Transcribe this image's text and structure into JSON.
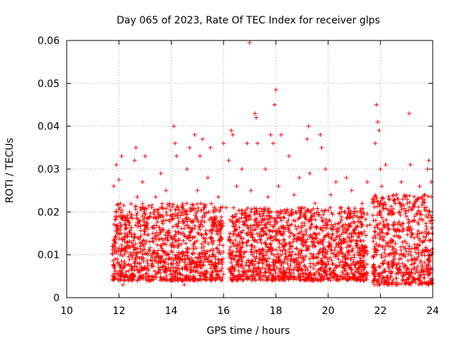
{
  "chart_data": {
    "type": "scatter",
    "title": "Day 065 of 2023, Rate Of TEC Index for receiver glps",
    "xlabel": "GPS time / hours",
    "ylabel": "ROTI / TECUs",
    "xlim": [
      10,
      24
    ],
    "ylim": [
      0,
      0.06
    ],
    "x_ticks": [
      10,
      12,
      14,
      16,
      18,
      20,
      22,
      24
    ],
    "x_tick_labels": [
      "10",
      "12",
      "14",
      "16",
      "18",
      "20",
      "22",
      "24"
    ],
    "y_ticks": [
      0,
      0.01,
      0.02,
      0.03,
      0.04,
      0.05,
      0.06
    ],
    "y_tick_labels": [
      "0",
      "0.01",
      "0.02",
      "0.03",
      "0.04",
      "0.05",
      "0.06"
    ],
    "grid": true,
    "marker": "+",
    "color": "#ff0000",
    "series": [
      {
        "name": "ROTI",
        "points": [
          [
            11.75,
            0.012
          ],
          [
            11.8,
            0.026
          ],
          [
            11.85,
            0.009
          ],
          [
            11.9,
            0.031
          ],
          [
            11.95,
            0.015
          ],
          [
            12.0,
            0.0275
          ],
          [
            12.05,
            0.022
          ],
          [
            12.1,
            0.033
          ],
          [
            12.15,
            0.003
          ],
          [
            12.2,
            0.018
          ],
          [
            12.3,
            0.012
          ],
          [
            12.4,
            0.02
          ],
          [
            12.5,
            0.01
          ],
          [
            12.6,
            0.032
          ],
          [
            12.65,
            0.035
          ],
          [
            12.7,
            0.0235
          ],
          [
            12.8,
            0.014
          ],
          [
            12.9,
            0.027
          ],
          [
            13.0,
            0.033
          ],
          [
            13.1,
            0.008
          ],
          [
            13.2,
            0.019
          ],
          [
            13.3,
            0.015
          ],
          [
            13.4,
            0.0235
          ],
          [
            13.5,
            0.011
          ],
          [
            13.6,
            0.029
          ],
          [
            13.7,
            0.018
          ],
          [
            13.8,
            0.025
          ],
          [
            13.9,
            0.009
          ],
          [
            14.0,
            0.019
          ],
          [
            14.1,
            0.04
          ],
          [
            14.15,
            0.036
          ],
          [
            14.2,
            0.033
          ],
          [
            14.3,
            0.0125
          ],
          [
            14.4,
            0.02
          ],
          [
            14.5,
            0.003
          ],
          [
            14.6,
            0.03
          ],
          [
            14.7,
            0.035
          ],
          [
            14.8,
            0.016
          ],
          [
            14.9,
            0.038
          ],
          [
            15.0,
            0.025
          ],
          [
            15.1,
            0.033
          ],
          [
            15.2,
            0.037
          ],
          [
            15.3,
            0.013
          ],
          [
            15.4,
            0.028
          ],
          [
            15.5,
            0.035
          ],
          [
            15.6,
            0.018
          ],
          [
            15.7,
            0.009
          ],
          [
            15.8,
            0.0235
          ],
          [
            15.9,
            0.014
          ],
          [
            16.0,
            0.036
          ],
          [
            16.1,
            0.021
          ],
          [
            16.2,
            0.032
          ],
          [
            16.3,
            0.039
          ],
          [
            16.35,
            0.038
          ],
          [
            16.4,
            0.015
          ],
          [
            16.5,
            0.026
          ],
          [
            16.6,
            0.011
          ],
          [
            16.7,
            0.03
          ],
          [
            16.8,
            0.02
          ],
          [
            16.9,
            0.036
          ],
          [
            17.0,
            0.0595
          ],
          [
            17.05,
            0.025
          ],
          [
            17.1,
            0.014
          ],
          [
            17.2,
            0.043
          ],
          [
            17.25,
            0.042
          ],
          [
            17.3,
            0.036
          ],
          [
            17.4,
            0.019
          ],
          [
            17.5,
            0.009
          ],
          [
            17.6,
            0.03
          ],
          [
            17.7,
            0.0235
          ],
          [
            17.8,
            0.038
          ],
          [
            17.9,
            0.036
          ],
          [
            17.95,
            0.045
          ],
          [
            18.0,
            0.0485
          ],
          [
            18.05,
            0.015
          ],
          [
            18.1,
            0.026
          ],
          [
            18.2,
            0.038
          ],
          [
            18.3,
            0.012
          ],
          [
            18.4,
            0.02
          ],
          [
            18.5,
            0.033
          ],
          [
            18.6,
            0.009
          ],
          [
            18.7,
            0.024
          ],
          [
            18.8,
            0.016
          ],
          [
            18.9,
            0.028
          ],
          [
            19.0,
            0.011
          ],
          [
            19.1,
            0.019
          ],
          [
            19.2,
            0.037
          ],
          [
            19.25,
            0.04
          ],
          [
            19.3,
            0.029
          ],
          [
            19.4,
            0.014
          ],
          [
            19.5,
            0.022
          ],
          [
            19.6,
            0.008
          ],
          [
            19.7,
            0.038
          ],
          [
            19.75,
            0.035
          ],
          [
            19.8,
            0.018
          ],
          [
            19.9,
            0.03
          ],
          [
            20.0,
            0.012
          ],
          [
            20.1,
            0.024
          ],
          [
            20.2,
            0.016
          ],
          [
            20.3,
            0.027
          ],
          [
            20.4,
            0.009
          ],
          [
            20.5,
            0.021
          ],
          [
            20.6,
            0.013
          ],
          [
            20.7,
            0.028
          ],
          [
            20.8,
            0.01
          ],
          [
            20.9,
            0.025
          ],
          [
            21.0,
            0.015
          ],
          [
            21.1,
            0.02
          ],
          [
            21.2,
            0.008
          ],
          [
            21.3,
            0.022
          ],
          [
            21.4,
            0.012
          ],
          [
            21.5,
            0.027
          ],
          [
            21.6,
            0.017
          ],
          [
            21.7,
            0.023
          ],
          [
            21.8,
            0.036
          ],
          [
            21.85,
            0.045
          ],
          [
            21.9,
            0.041
          ],
          [
            21.95,
            0.039
          ],
          [
            22.0,
            0.03
          ],
          [
            22.05,
            0.026
          ],
          [
            22.1,
            0.021
          ],
          [
            22.2,
            0.031
          ],
          [
            22.3,
            0.012
          ],
          [
            22.4,
            0.02
          ],
          [
            22.5,
            0.008
          ],
          [
            22.6,
            0.024
          ],
          [
            22.7,
            0.014
          ],
          [
            22.8,
            0.027
          ],
          [
            22.9,
            0.01
          ],
          [
            23.0,
            0.019
          ],
          [
            23.1,
            0.043
          ],
          [
            23.15,
            0.031
          ],
          [
            23.2,
            0.016
          ],
          [
            23.3,
            0.022
          ],
          [
            23.4,
            0.009
          ],
          [
            23.5,
            0.026
          ],
          [
            23.6,
            0.013
          ],
          [
            23.7,
            0.024
          ],
          [
            23.8,
            0.03
          ],
          [
            23.85,
            0.032
          ],
          [
            23.9,
            0.011
          ],
          [
            23.95,
            0.027
          ],
          [
            24.0,
            0.018
          ]
        ]
      }
    ],
    "dense_bands": [
      {
        "x": [
          11.75,
          16.0
        ],
        "y": [
          0.004,
          0.022
        ]
      },
      {
        "x": [
          16.2,
          21.5
        ],
        "y": [
          0.004,
          0.021
        ]
      },
      {
        "x": [
          21.7,
          24.0
        ],
        "y": [
          0.003,
          0.024
        ]
      }
    ]
  }
}
